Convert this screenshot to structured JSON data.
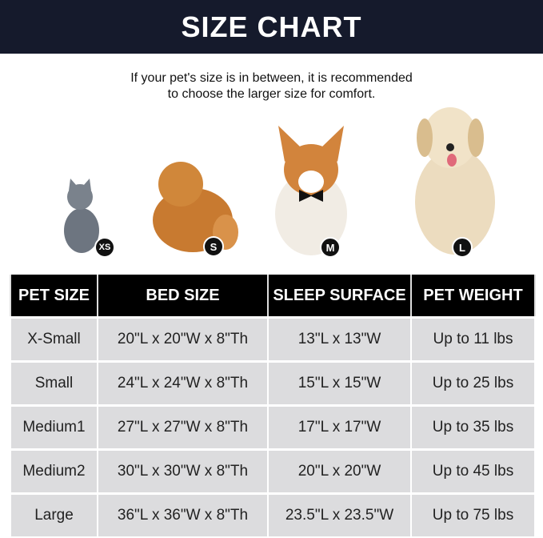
{
  "title": "SIZE CHART",
  "note": [
    "If your pet's size is in between, it is recommended",
    "to choose the larger size for comfort."
  ],
  "pets": [
    {
      "animal": "cat",
      "badge": "XS"
    },
    {
      "animal": "pomeranian",
      "badge": "S"
    },
    {
      "animal": "corgi",
      "badge": "M"
    },
    {
      "animal": "golden retriever",
      "badge": "L"
    }
  ],
  "table": {
    "headers": [
      "PET SIZE",
      "BED SIZE",
      "SLEEP SURFACE",
      "PET WEIGHT"
    ],
    "rows": [
      [
        "X-Small",
        "20\"L x 20\"W x 8\"Th",
        "13\"L x 13\"W",
        "Up to 11 lbs"
      ],
      [
        "Small",
        "24\"L x 24\"W x 8\"Th",
        "15\"L x 15\"W",
        "Up to 25 lbs"
      ],
      [
        "Medium1",
        "27\"L x 27\"W x 8\"Th",
        "17\"L x 17\"W",
        "Up to 35 lbs"
      ],
      [
        "Medium2",
        "30\"L x 30\"W x 8\"Th",
        "20\"L x 20\"W",
        "Up to 45 lbs"
      ],
      [
        "Large",
        "36\"L x 36\"W x 8\"Th",
        "23.5\"L x 23.5\"W",
        "Up to 75 lbs"
      ]
    ]
  },
  "colors": {
    "banner": "#151a2c",
    "header": "#000000",
    "row": "#dcdcde"
  }
}
